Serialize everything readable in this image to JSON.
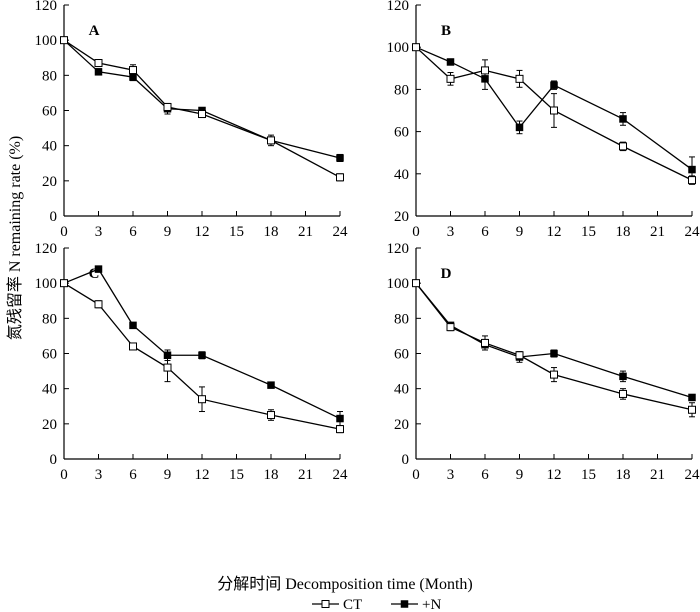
{
  "figure": {
    "ylabel": "氮残留率 N remaining rate (%)",
    "xlabel": "分解时间 Decomposition time (Month)",
    "legend": {
      "placement": "bottom-center",
      "entries": [
        {
          "label": "CT",
          "marker": "open-square"
        },
        {
          "label": "+N",
          "marker": "filled-square"
        }
      ]
    },
    "colors": {
      "line": "#000000",
      "open_marker_fill": "#ffffff",
      "filled_marker_fill": "#000000"
    }
  },
  "chart_data": [
    {
      "type": "line",
      "panel": "A",
      "x": [
        0,
        3,
        6,
        9,
        12,
        18,
        24
      ],
      "xticks": [
        0,
        3,
        6,
        9,
        12,
        15,
        18,
        21,
        24
      ],
      "xlim": [
        0,
        24
      ],
      "ylim": [
        0,
        120
      ],
      "yticks": [
        0,
        20,
        40,
        60,
        80,
        100,
        120
      ],
      "series": [
        {
          "name": "CT",
          "values": [
            100,
            87,
            83,
            62,
            58,
            43,
            22
          ],
          "errors": [
            0,
            2,
            3,
            2,
            2,
            3,
            2
          ]
        },
        {
          "name": "+N",
          "values": [
            100,
            82,
            79,
            61,
            60,
            43,
            33
          ],
          "errors": [
            0,
            1,
            2,
            3,
            1,
            2,
            2
          ]
        }
      ]
    },
    {
      "type": "line",
      "panel": "B",
      "x": [
        0,
        3,
        6,
        9,
        12,
        18,
        24
      ],
      "xticks": [
        0,
        3,
        6,
        9,
        12,
        15,
        18,
        21,
        24
      ],
      "xlim": [
        0,
        24
      ],
      "ylim": [
        20,
        120
      ],
      "yticks": [
        20,
        40,
        60,
        80,
        100,
        120
      ],
      "series": [
        {
          "name": "CT",
          "values": [
            100,
            85,
            89,
            85,
            70,
            53,
            37
          ],
          "errors": [
            0,
            3,
            5,
            4,
            8,
            2,
            2
          ]
        },
        {
          "name": "+N",
          "values": [
            100,
            93,
            85,
            62,
            82,
            66,
            42
          ],
          "errors": [
            0,
            1,
            5,
            3,
            2,
            3,
            6
          ]
        }
      ]
    },
    {
      "type": "line",
      "panel": "C",
      "x": [
        0,
        3,
        6,
        9,
        12,
        18,
        24
      ],
      "xticks": [
        0,
        3,
        6,
        9,
        12,
        15,
        18,
        21,
        24
      ],
      "xlim": [
        0,
        24
      ],
      "ylim": [
        0,
        120
      ],
      "yticks": [
        0,
        20,
        40,
        60,
        80,
        100,
        120
      ],
      "series": [
        {
          "name": "CT",
          "values": [
            100,
            88,
            64,
            52,
            34,
            25,
            17
          ],
          "errors": [
            0,
            2,
            1,
            8,
            7,
            3,
            2
          ]
        },
        {
          "name": "+N",
          "values": [
            100,
            108,
            76,
            59,
            59,
            42,
            23
          ],
          "errors": [
            0,
            1,
            1,
            3,
            2,
            1,
            4
          ]
        }
      ]
    },
    {
      "type": "line",
      "panel": "D",
      "x": [
        0,
        3,
        6,
        9,
        12,
        18,
        24
      ],
      "xticks": [
        0,
        3,
        6,
        9,
        12,
        15,
        18,
        21,
        24
      ],
      "xlim": [
        0,
        24
      ],
      "ylim": [
        0,
        120
      ],
      "yticks": [
        0,
        20,
        40,
        60,
        80,
        100,
        120
      ],
      "series": [
        {
          "name": "CT",
          "values": [
            100,
            75,
            66,
            59,
            48,
            37,
            28
          ],
          "errors": [
            0,
            2,
            4,
            2,
            4,
            3,
            4
          ]
        },
        {
          "name": "+N",
          "values": [
            100,
            76,
            65,
            58,
            60,
            47,
            35
          ],
          "errors": [
            0,
            1,
            3,
            3,
            2,
            3,
            1
          ]
        }
      ]
    }
  ]
}
